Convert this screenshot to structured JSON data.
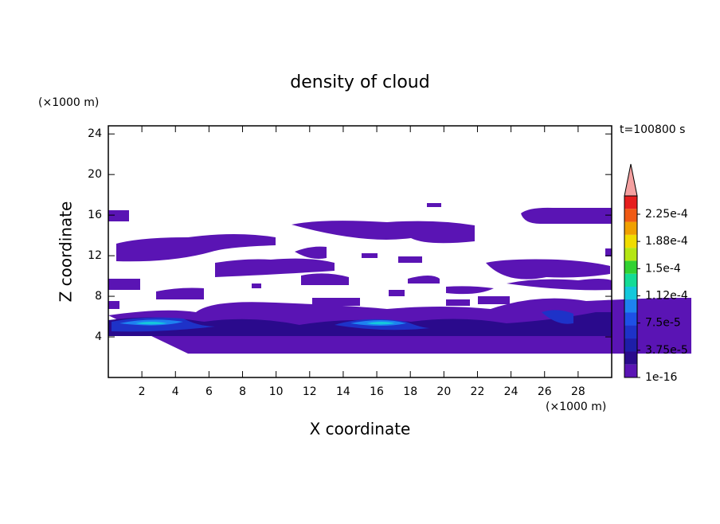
{
  "chart_data": {
    "type": "contour",
    "title": "density of cloud",
    "time_label": "t=100800 s",
    "x_label": "X coordinate",
    "x_unit": "(×1000 m)",
    "y_label": "Z coordinate",
    "y_unit": "(×1000 m)",
    "xlim": [
      0,
      30
    ],
    "ylim": [
      0,
      24.8
    ],
    "xticks": [
      2,
      4,
      6,
      8,
      10,
      12,
      14,
      16,
      18,
      20,
      22,
      24,
      26,
      28
    ],
    "yticks": [
      4,
      8,
      12,
      16,
      20,
      24
    ],
    "colorbar": {
      "colors": [
        "#5a14b4",
        "#2a0a8c",
        "#1e1ea8",
        "#1e32c8",
        "#1e50e6",
        "#1e82f0",
        "#14c8dc",
        "#14dc96",
        "#32d232",
        "#b4e614",
        "#f0dc00",
        "#f0a000",
        "#f05a14",
        "#e61e1e"
      ],
      "extend_color": "#f4a0a0",
      "clim": [
        1e-16,
        0.000225
      ],
      "ticks": [
        {
          "value": 1e-16,
          "label": "1e-16"
        },
        {
          "value": 3.75e-05,
          "label": "3.75e-5"
        },
        {
          "value": 7.5e-05,
          "label": "7.5e-5"
        },
        {
          "value": 0.0001125,
          "label": "1.12e-4"
        },
        {
          "value": 0.00015,
          "label": "1.5e-4"
        },
        {
          "value": 0.0001875,
          "label": "1.88e-4"
        },
        {
          "value": 0.000225,
          "label": "2.25e-4"
        }
      ]
    }
  }
}
